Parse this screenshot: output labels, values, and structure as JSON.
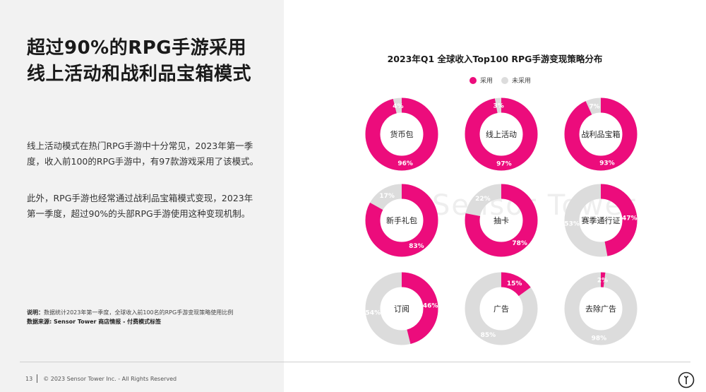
{
  "page": {
    "headline_line1": "超过90%的RPG手游采用",
    "headline_line2": "线上活动和战利品宝箱模式",
    "paragraph1": "线上活动模式在热门RPG手游中十分常见，2023年第一季度，收入前100的RPG手游中，有97款游戏采用了该模式。",
    "paragraph2": "此外，RPG手游也经常通过战利品宝箱模式变现，2023年第一季度，超过90%的头部RPG手游使用这种变现机制。",
    "note_label": "说明：",
    "note_text": "数据统计2023年第一季度，全球收入前100名的RPG手游变现策略使用比例",
    "source_label": "数据来源: Sensor Tower 商店情报 - 付费模式标签",
    "page_number": "13",
    "copyright": "© 2023 Sensor Tower Inc. - All Rights Reserved",
    "watermark": "Sensor Tower"
  },
  "colors": {
    "adopted": "#ec0c7c",
    "not_adopted": "#dcdcdc",
    "left_panel": "#f2f2f2"
  },
  "chart_data": {
    "type": "pie",
    "variant": "donut-grid",
    "title": "2023年Q1 全球收入Top100 RPG手游变现策略分布",
    "legend": {
      "placement": "top-center",
      "entries": [
        "采用",
        "未采用"
      ]
    },
    "charts": [
      {
        "name": "货币包",
        "adopted": 96,
        "not_adopted": 4,
        "adopted_label": "96%",
        "not_adopted_label": "4%"
      },
      {
        "name": "线上活动",
        "adopted": 97,
        "not_adopted": 3,
        "adopted_label": "97%",
        "not_adopted_label": "3%"
      },
      {
        "name": "战利品宝箱",
        "adopted": 93,
        "not_adopted": 7,
        "adopted_label": "93%",
        "not_adopted_label": "7%"
      },
      {
        "name": "新手礼包",
        "adopted": 83,
        "not_adopted": 17,
        "adopted_label": "83%",
        "not_adopted_label": "17%"
      },
      {
        "name": "抽卡",
        "adopted": 78,
        "not_adopted": 22,
        "adopted_label": "78%",
        "not_adopted_label": "22%"
      },
      {
        "name": "赛季通行证",
        "adopted": 47,
        "not_adopted": 53,
        "adopted_label": "47%",
        "not_adopted_label": "53%"
      },
      {
        "name": "订阅",
        "adopted": 46,
        "not_adopted": 54,
        "adopted_label": "46%",
        "not_adopted_label": "54%"
      },
      {
        "name": "广告",
        "adopted": 15,
        "not_adopted": 85,
        "adopted_label": "15%",
        "not_adopted_label": "85%"
      },
      {
        "name": "去除广告",
        "adopted": 2,
        "not_adopted": 98,
        "adopted_label": "2%",
        "not_adopted_label": "98%"
      }
    ]
  }
}
